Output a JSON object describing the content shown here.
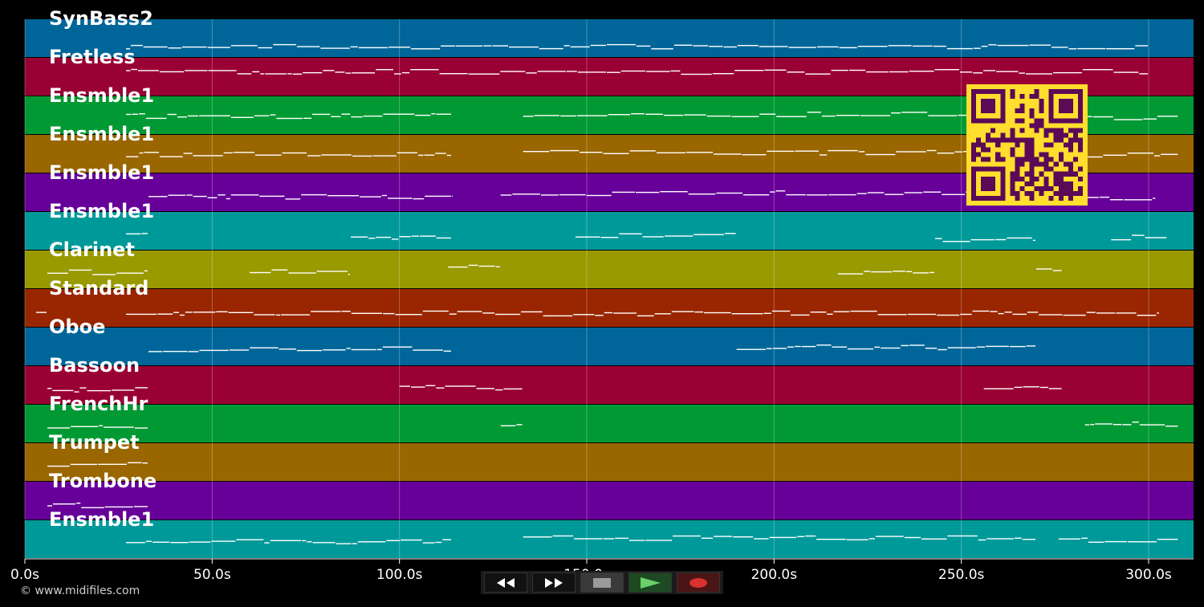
{
  "chart_data": {
    "type": "piano-roll",
    "x_unit": "s",
    "xlim": [
      0,
      312
    ],
    "x_ticks": [
      {
        "value": 0,
        "label": "0.0s"
      },
      {
        "value": 50,
        "label": "50.0s"
      },
      {
        "value": 100,
        "label": "100.0s"
      },
      {
        "value": 150,
        "label": "150.0s"
      },
      {
        "value": 200,
        "label": "200.0s"
      },
      {
        "value": 250,
        "label": "250.0s"
      },
      {
        "value": 300,
        "label": "300.0s"
      }
    ],
    "grid": true,
    "tracks": [
      {
        "name": "SynBass2",
        "color": "#006699",
        "notes": [
          [
            27,
            300,
            0.7
          ]
        ]
      },
      {
        "name": "Fretless",
        "color": "#990033",
        "notes": [
          [
            27,
            300,
            0.35
          ]
        ]
      },
      {
        "name": "Ensmble1",
        "color": "#009933",
        "notes": [
          [
            27,
            114,
            0.5
          ],
          [
            133,
            278,
            0.45
          ],
          [
            281,
            308,
            0.55
          ]
        ]
      },
      {
        "name": "Ensmble1",
        "color": "#996600",
        "notes": [
          [
            27,
            114,
            0.5
          ],
          [
            133,
            277,
            0.45
          ],
          [
            281,
            308,
            0.5
          ]
        ]
      },
      {
        "name": "Ensmble1",
        "color": "#660099",
        "notes": [
          [
            33,
            114,
            0.6
          ],
          [
            127,
            270,
            0.5
          ],
          [
            276,
            302,
            0.65
          ]
        ]
      },
      {
        "name": "Ensmble1",
        "color": "#009999",
        "notes": [
          [
            27,
            33,
            0.6
          ],
          [
            87,
            114,
            0.65
          ],
          [
            147,
            190,
            0.6
          ],
          [
            243,
            270,
            0.7
          ],
          [
            290,
            305,
            0.65
          ]
        ]
      },
      {
        "name": "Clarinet",
        "color": "#999900",
        "notes": [
          [
            6,
            33,
            0.55
          ],
          [
            60,
            87,
            0.55
          ],
          [
            113,
            127,
            0.4
          ],
          [
            217,
            243,
            0.55
          ],
          [
            270,
            277,
            0.45
          ]
        ]
      },
      {
        "name": "Standard",
        "color": "#992600",
        "notes": [
          [
            3,
            6,
            0.55
          ],
          [
            27,
            303,
            0.62
          ]
        ]
      },
      {
        "name": "Oboe",
        "color": "#006699",
        "notes": [
          [
            33,
            114,
            0.55
          ],
          [
            190,
            270,
            0.5
          ]
        ]
      },
      {
        "name": "Bassoon",
        "color": "#990033",
        "notes": [
          [
            6,
            33,
            0.6
          ],
          [
            100,
            133,
            0.55
          ],
          [
            256,
            277,
            0.55
          ]
        ]
      },
      {
        "name": "FrenchHr",
        "color": "#009933",
        "notes": [
          [
            6,
            33,
            0.55
          ],
          [
            127,
            133,
            0.5
          ],
          [
            283,
            308,
            0.5
          ]
        ]
      },
      {
        "name": "Trumpet",
        "color": "#996600",
        "notes": [
          [
            6,
            33,
            0.55
          ]
        ]
      },
      {
        "name": "Trombone",
        "color": "#660099",
        "notes": [
          [
            6,
            33,
            0.6
          ]
        ]
      },
      {
        "name": "Ensmble1",
        "color": "#009999",
        "notes": [
          [
            27,
            114,
            0.55
          ],
          [
            133,
            270,
            0.45
          ],
          [
            276,
            308,
            0.5
          ]
        ]
      }
    ]
  },
  "footer": {
    "copyright": "© www.midifiles.com"
  },
  "controls": {
    "rewind_icon": "rewind-icon",
    "forward_icon": "fast-forward-icon",
    "stop_icon": "stop-icon",
    "play_icon": "play-icon",
    "record_icon": "record-icon"
  },
  "qr_code": {
    "color": "#ffde2e",
    "module_color": "#5a0a57"
  }
}
